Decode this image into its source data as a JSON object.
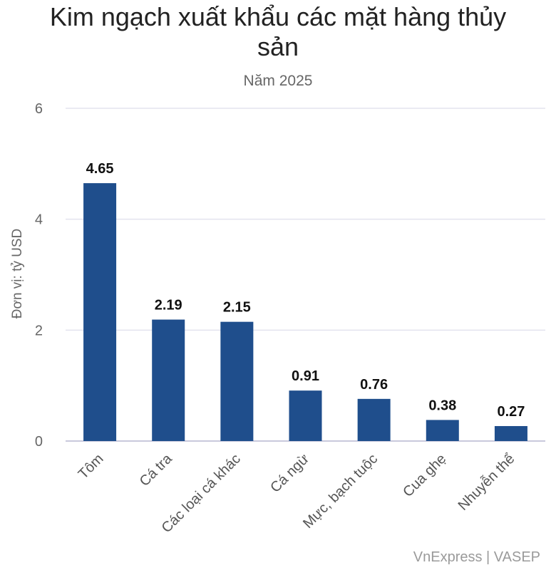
{
  "chart_data": {
    "type": "bar",
    "title_lines": [
      "Kim ngạch xuất khẩu các mặt hàng thủy",
      "sản"
    ],
    "subtitle": "Năm 2025",
    "ylabel": "Đơn vị: tỷ USD",
    "xlabel": "",
    "categories": [
      "Tôm",
      "Cá tra",
      "Các loại cá khác",
      "Cá ngừ",
      "Mực, bạch tuộc",
      "Cua ghẹ",
      "Nhuyễn thể"
    ],
    "values": [
      4.65,
      2.19,
      2.15,
      0.91,
      0.76,
      0.38,
      0.27
    ],
    "data_labels": [
      "4.65",
      "2.19",
      "2.15",
      "0.91",
      "0.76",
      "0.38",
      "0.27"
    ],
    "ylim": [
      0,
      6
    ],
    "yticks": [
      0,
      2,
      4,
      6
    ],
    "ytick_labels": [
      "0",
      "2",
      "4",
      "6"
    ],
    "grid": true,
    "legend": "none",
    "bar_color": "#1f4e8c",
    "source": "VnExpress | VASEP"
  }
}
